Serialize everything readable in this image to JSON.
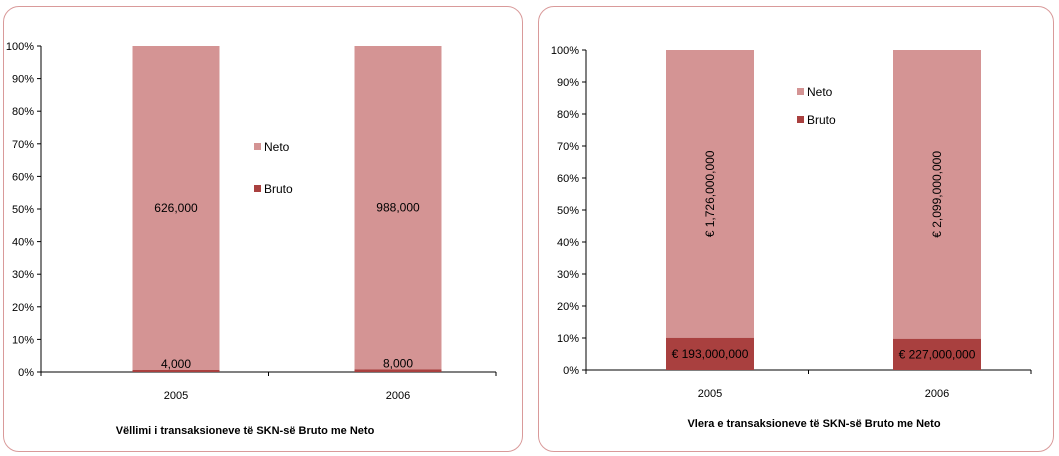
{
  "colors": {
    "neto": "#d49494",
    "bruto": "#a9403f",
    "border": "#d99a9a",
    "axis": "#000000"
  },
  "chart_data": [
    {
      "type": "bar",
      "stacked": "percent",
      "categories": [
        "2005",
        "2006"
      ],
      "series": [
        {
          "name": "Bruto",
          "values": [
            4000,
            8000
          ],
          "labels": [
            "4,000",
            "8,000"
          ]
        },
        {
          "name": "Neto",
          "values": [
            626000,
            988000
          ],
          "labels": [
            "626,000",
            "988,000"
          ]
        }
      ],
      "ylim": [
        0,
        100
      ],
      "yticks": [
        "0%",
        "10%",
        "20%",
        "30%",
        "40%",
        "50%",
        "60%",
        "70%",
        "80%",
        "90%",
        "100%"
      ],
      "title": "",
      "xlabel": "Vëllimi i transaksioneve të SKN-së Bruto me Neto",
      "ylabel": "",
      "grid": false,
      "legend": [
        "Neto",
        "Bruto"
      ],
      "legend_position": "right"
    },
    {
      "type": "bar",
      "stacked": "percent",
      "categories": [
        "2005",
        "2006"
      ],
      "series": [
        {
          "name": "Bruto",
          "values": [
            193000000,
            227000000
          ],
          "labels": [
            "€ 193,000,000",
            "€ 227,000,000"
          ]
        },
        {
          "name": "Neto",
          "values": [
            1726000000,
            2099000000
          ],
          "labels": [
            "€ 1,726,000,000",
            "€ 2,099,000,000"
          ]
        }
      ],
      "ylim": [
        0,
        100
      ],
      "yticks": [
        "0%",
        "10%",
        "20%",
        "30%",
        "40%",
        "50%",
        "60%",
        "70%",
        "80%",
        "90%",
        "100%"
      ],
      "title": "",
      "xlabel": "Vlera e transaksioneve të SKN-së Bruto me Neto",
      "ylabel": "",
      "grid": false,
      "legend": [
        "Neto",
        "Bruto"
      ],
      "legend_position": "top-right"
    }
  ]
}
